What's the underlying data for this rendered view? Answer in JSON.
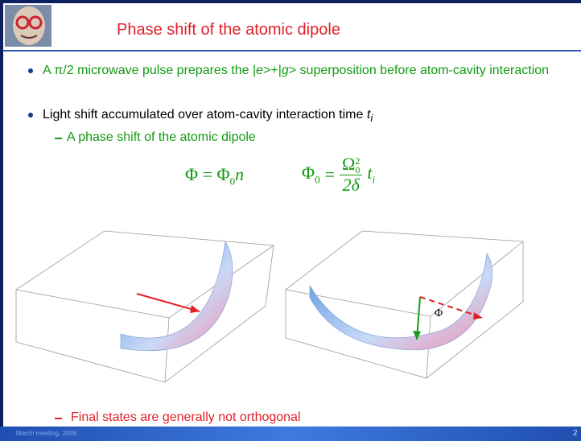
{
  "header": {
    "title": "Phase shift of the atomic dipole"
  },
  "bullets": [
    {
      "segments": [
        "A π/2 microwave pulse prepares the |",
        "e",
        ">+|",
        "g",
        "> superposition before atom-cavity interaction"
      ]
    },
    {
      "text": "Light shift accumulated over atom-cavity interaction time",
      "variable": "t",
      "subscript": "i"
    }
  ],
  "sub_bullets": [
    "A phase shift of the atomic dipole",
    "Final states are generally not orthogonal"
  ],
  "equations": [
    {
      "lhs": "Φ",
      "eq": "=",
      "rhs": "Φ",
      "rhs_sub": "0",
      "rhs_var": "n"
    },
    {
      "lhs": "Φ",
      "lhs_sub": "0",
      "eq": "=",
      "num": "Ω",
      "num_sub": "0",
      "num_sup": "2",
      "den": "2δ",
      "var": "t",
      "var_sub": "i"
    }
  ],
  "figure": {
    "angle_label": "Φ"
  },
  "footer": {
    "event": "March meeting, 2008",
    "page": "2"
  }
}
